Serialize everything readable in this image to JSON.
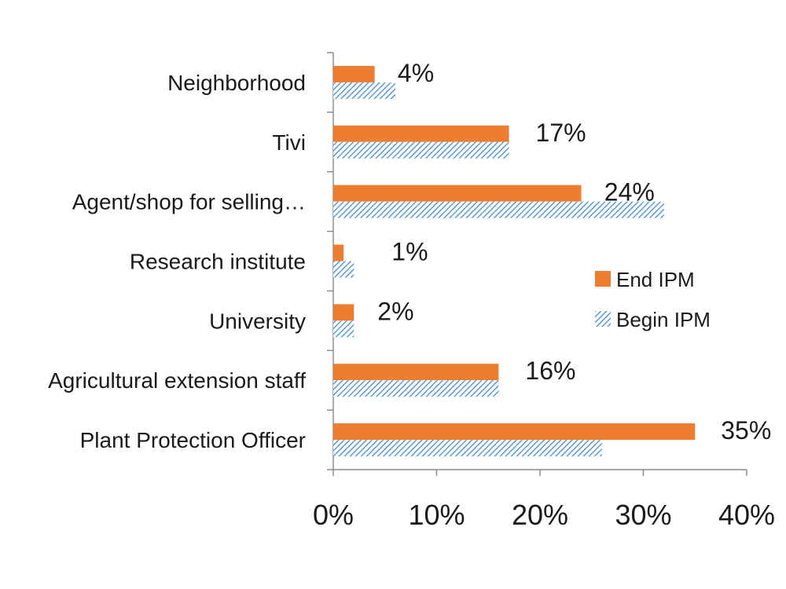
{
  "chart_data": {
    "type": "bar",
    "orientation": "horizontal",
    "title": "",
    "xlabel": "",
    "ylabel": "",
    "categories": [
      "Neighborhood",
      "Tivi",
      "Agent/shop for selling…",
      "Research institute",
      "University",
      "Agricultural extension staff",
      "Plant Protection Officer"
    ],
    "series": [
      {
        "name": "End IPM",
        "values": [
          4,
          17,
          24,
          1,
          2,
          16,
          35
        ],
        "color": "#ED7D31",
        "pattern": "solid"
      },
      {
        "name": "Begin IPM",
        "values": [
          6,
          17,
          32,
          2,
          2,
          16,
          26
        ],
        "color": "#5B9BD5",
        "pattern": "hatched"
      }
    ],
    "data_labels": [
      "4%",
      "17%",
      "24%",
      "1%",
      "2%",
      "16%",
      "35%"
    ],
    "xlim": [
      0,
      40
    ],
    "xticks": [
      "0%",
      "10%",
      "20%",
      "30%",
      "40%"
    ],
    "grid": false,
    "legend_position": "right"
  }
}
